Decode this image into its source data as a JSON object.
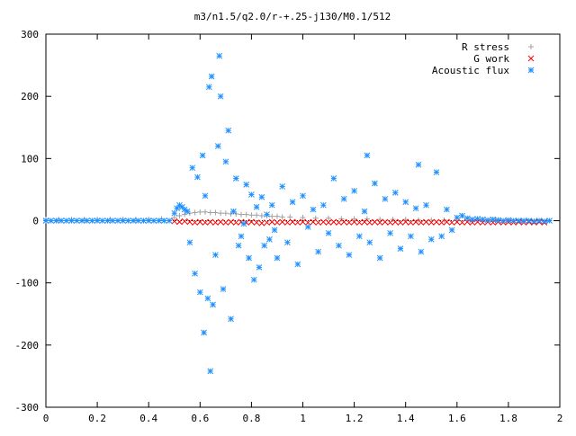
{
  "chart_data": {
    "type": "scatter",
    "title": "m3/n1.5/q2.0/r-+.25-j130/M0.1/512",
    "xlabel": "",
    "ylabel": "",
    "xlim": [
      0,
      2
    ],
    "ylim": [
      -300,
      300
    ],
    "xticks": [
      0,
      0.2,
      0.4,
      0.6,
      0.8,
      1,
      1.2,
      1.4,
      1.6,
      1.8,
      2
    ],
    "xtick_labels": [
      "0",
      "0.2",
      "0.4",
      "0.6",
      "0.8",
      "1",
      "1.2",
      "1.4",
      "1.6",
      "1.8",
      "2"
    ],
    "yticks": [
      -300,
      -200,
      -100,
      0,
      100,
      200,
      300
    ],
    "ytick_labels": [
      "-300",
      "-200",
      "-100",
      "0",
      "100",
      "200",
      "300"
    ],
    "legend_position": "top-right",
    "series": [
      {
        "name": "R stress",
        "marker": "plus",
        "color": "#a0a0a0",
        "points": [
          [
            0.0,
            2
          ],
          [
            0.05,
            2
          ],
          [
            0.1,
            2
          ],
          [
            0.15,
            2
          ],
          [
            0.2,
            2
          ],
          [
            0.25,
            2
          ],
          [
            0.3,
            2
          ],
          [
            0.35,
            2
          ],
          [
            0.4,
            2
          ],
          [
            0.45,
            3
          ],
          [
            0.5,
            5
          ],
          [
            0.52,
            8
          ],
          [
            0.54,
            10
          ],
          [
            0.56,
            12
          ],
          [
            0.58,
            13
          ],
          [
            0.6,
            14
          ],
          [
            0.62,
            14
          ],
          [
            0.64,
            13
          ],
          [
            0.66,
            13
          ],
          [
            0.68,
            12
          ],
          [
            0.7,
            12
          ],
          [
            0.72,
            11
          ],
          [
            0.74,
            11
          ],
          [
            0.76,
            10
          ],
          [
            0.78,
            10
          ],
          [
            0.8,
            9
          ],
          [
            0.82,
            9
          ],
          [
            0.84,
            8
          ],
          [
            0.86,
            8
          ],
          [
            0.88,
            7
          ],
          [
            0.9,
            7
          ],
          [
            0.92,
            6
          ],
          [
            0.95,
            6
          ],
          [
            1.0,
            5
          ],
          [
            1.05,
            4
          ],
          [
            1.1,
            4
          ],
          [
            1.15,
            3
          ],
          [
            1.2,
            3
          ],
          [
            1.25,
            3
          ],
          [
            1.3,
            2
          ],
          [
            1.35,
            2
          ],
          [
            1.4,
            2
          ],
          [
            1.45,
            1
          ],
          [
            1.5,
            1
          ],
          [
            1.55,
            1
          ],
          [
            1.6,
            0
          ],
          [
            1.65,
            0
          ],
          [
            1.7,
            0
          ],
          [
            1.75,
            0
          ],
          [
            1.8,
            -1
          ],
          [
            1.85,
            -1
          ],
          [
            1.9,
            -1
          ],
          [
            1.95,
            -1
          ]
        ]
      },
      {
        "name": "G work",
        "marker": "cross",
        "color": "#ff0000",
        "points": [
          [
            0.5,
            -1
          ],
          [
            0.52,
            -2
          ],
          [
            0.54,
            -1
          ],
          [
            0.56,
            -2
          ],
          [
            0.58,
            -3
          ],
          [
            0.6,
            -2
          ],
          [
            0.62,
            -3
          ],
          [
            0.64,
            -2
          ],
          [
            0.66,
            -3
          ],
          [
            0.68,
            -2
          ],
          [
            0.7,
            -3
          ],
          [
            0.72,
            -2
          ],
          [
            0.74,
            -3
          ],
          [
            0.76,
            -2
          ],
          [
            0.78,
            -3
          ],
          [
            0.8,
            -2
          ],
          [
            0.82,
            -3
          ],
          [
            0.84,
            -4
          ],
          [
            0.86,
            -3
          ],
          [
            0.88,
            -2
          ],
          [
            0.9,
            -3
          ],
          [
            0.92,
            -2
          ],
          [
            0.94,
            -3
          ],
          [
            0.96,
            -2
          ],
          [
            0.98,
            -3
          ],
          [
            1.0,
            -2
          ],
          [
            1.02,
            -3
          ],
          [
            1.04,
            -2
          ],
          [
            1.06,
            -3
          ],
          [
            1.08,
            -2
          ],
          [
            1.1,
            -3
          ],
          [
            1.12,
            -2
          ],
          [
            1.14,
            -3
          ],
          [
            1.16,
            -2
          ],
          [
            1.18,
            -3
          ],
          [
            1.2,
            -2
          ],
          [
            1.22,
            -3
          ],
          [
            1.24,
            -2
          ],
          [
            1.26,
            -3
          ],
          [
            1.28,
            -2
          ],
          [
            1.3,
            -3
          ],
          [
            1.32,
            -2
          ],
          [
            1.34,
            -3
          ],
          [
            1.36,
            -2
          ],
          [
            1.38,
            -3
          ],
          [
            1.4,
            -2
          ],
          [
            1.42,
            -3
          ],
          [
            1.44,
            -2
          ],
          [
            1.46,
            -3
          ],
          [
            1.48,
            -2
          ],
          [
            1.5,
            -3
          ],
          [
            1.52,
            -2
          ],
          [
            1.54,
            -3
          ],
          [
            1.56,
            -2
          ],
          [
            1.58,
            -3
          ],
          [
            1.6,
            -2
          ],
          [
            1.62,
            -3
          ],
          [
            1.64,
            -2
          ],
          [
            1.66,
            -3
          ],
          [
            1.68,
            -2
          ],
          [
            1.7,
            -3
          ],
          [
            1.72,
            -2
          ],
          [
            1.74,
            -3
          ],
          [
            1.76,
            -2
          ],
          [
            1.78,
            -3
          ],
          [
            1.8,
            -2
          ],
          [
            1.82,
            -3
          ],
          [
            1.84,
            -2
          ],
          [
            1.86,
            -3
          ],
          [
            1.88,
            -2
          ],
          [
            1.9,
            -3
          ],
          [
            1.92,
            -2
          ],
          [
            1.94,
            -3
          ]
        ]
      },
      {
        "name": "Acoustic flux",
        "marker": "star",
        "color": "#1e90ff",
        "points": [
          [
            0.0,
            0
          ],
          [
            0.02,
            0
          ],
          [
            0.04,
            0
          ],
          [
            0.06,
            0
          ],
          [
            0.08,
            0
          ],
          [
            0.1,
            0
          ],
          [
            0.12,
            0
          ],
          [
            0.14,
            0
          ],
          [
            0.16,
            0
          ],
          [
            0.18,
            0
          ],
          [
            0.2,
            0
          ],
          [
            0.22,
            0
          ],
          [
            0.24,
            0
          ],
          [
            0.26,
            0
          ],
          [
            0.28,
            0
          ],
          [
            0.3,
            0
          ],
          [
            0.32,
            0
          ],
          [
            0.34,
            0
          ],
          [
            0.36,
            0
          ],
          [
            0.38,
            0
          ],
          [
            0.4,
            0
          ],
          [
            0.42,
            0
          ],
          [
            0.44,
            0
          ],
          [
            0.46,
            0
          ],
          [
            0.48,
            0
          ],
          [
            0.5,
            12
          ],
          [
            0.51,
            20
          ],
          [
            0.52,
            25
          ],
          [
            0.53,
            22
          ],
          [
            0.54,
            18
          ],
          [
            0.55,
            15
          ],
          [
            0.56,
            -35
          ],
          [
            0.57,
            85
          ],
          [
            0.58,
            -85
          ],
          [
            0.59,
            70
          ],
          [
            0.6,
            -115
          ],
          [
            0.61,
            105
          ],
          [
            0.615,
            -180
          ],
          [
            0.62,
            40
          ],
          [
            0.63,
            -125
          ],
          [
            0.635,
            215
          ],
          [
            0.64,
            -242
          ],
          [
            0.645,
            232
          ],
          [
            0.65,
            -135
          ],
          [
            0.66,
            -55
          ],
          [
            0.67,
            120
          ],
          [
            0.675,
            265
          ],
          [
            0.68,
            200
          ],
          [
            0.69,
            -110
          ],
          [
            0.7,
            95
          ],
          [
            0.71,
            145
          ],
          [
            0.72,
            -158
          ],
          [
            0.73,
            15
          ],
          [
            0.74,
            68
          ],
          [
            0.75,
            -40
          ],
          [
            0.76,
            -25
          ],
          [
            0.77,
            -5
          ],
          [
            0.78,
            58
          ],
          [
            0.79,
            -60
          ],
          [
            0.8,
            42
          ],
          [
            0.81,
            -95
          ],
          [
            0.82,
            22
          ],
          [
            0.83,
            -75
          ],
          [
            0.84,
            38
          ],
          [
            0.85,
            -40
          ],
          [
            0.86,
            10
          ],
          [
            0.87,
            -30
          ],
          [
            0.88,
            25
          ],
          [
            0.89,
            -15
          ],
          [
            0.9,
            -60
          ],
          [
            0.92,
            55
          ],
          [
            0.94,
            -35
          ],
          [
            0.96,
            30
          ],
          [
            0.98,
            -70
          ],
          [
            1.0,
            40
          ],
          [
            1.02,
            -10
          ],
          [
            1.04,
            18
          ],
          [
            1.06,
            -50
          ],
          [
            1.08,
            25
          ],
          [
            1.1,
            -20
          ],
          [
            1.12,
            68
          ],
          [
            1.14,
            -40
          ],
          [
            1.16,
            35
          ],
          [
            1.18,
            -55
          ],
          [
            1.2,
            48
          ],
          [
            1.22,
            -25
          ],
          [
            1.24,
            15
          ],
          [
            1.25,
            105
          ],
          [
            1.26,
            -35
          ],
          [
            1.28,
            60
          ],
          [
            1.3,
            -60
          ],
          [
            1.32,
            35
          ],
          [
            1.34,
            -20
          ],
          [
            1.36,
            45
          ],
          [
            1.38,
            -45
          ],
          [
            1.4,
            30
          ],
          [
            1.42,
            -25
          ],
          [
            1.44,
            20
          ],
          [
            1.45,
            90
          ],
          [
            1.46,
            -50
          ],
          [
            1.48,
            25
          ],
          [
            1.5,
            -30
          ],
          [
            1.52,
            78
          ],
          [
            1.54,
            -25
          ],
          [
            1.56,
            18
          ],
          [
            1.58,
            -15
          ],
          [
            1.6,
            5
          ],
          [
            1.62,
            8
          ],
          [
            1.64,
            4
          ],
          [
            1.66,
            2
          ],
          [
            1.68,
            3
          ],
          [
            1.7,
            2
          ],
          [
            1.72,
            1
          ],
          [
            1.74,
            2
          ],
          [
            1.76,
            1
          ],
          [
            1.78,
            0
          ],
          [
            1.8,
            1
          ],
          [
            1.82,
            0
          ],
          [
            1.84,
            0
          ],
          [
            1.86,
            0
          ],
          [
            1.88,
            0
          ],
          [
            1.9,
            -1
          ],
          [
            1.92,
            0
          ],
          [
            1.94,
            -1
          ],
          [
            1.96,
            0
          ]
        ]
      }
    ]
  }
}
